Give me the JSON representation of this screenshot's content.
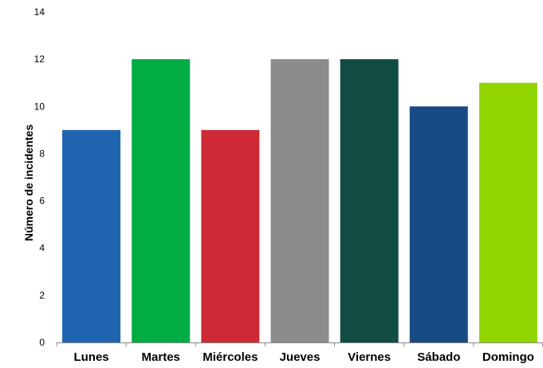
{
  "chart_data": {
    "type": "bar",
    "title": "",
    "xlabel": "",
    "ylabel": "Número de incidentes",
    "categories": [
      "Lunes",
      "Martes",
      "Miércoles",
      "Jueves",
      "Viernes",
      "Sábado",
      "Domingo"
    ],
    "values": [
      9,
      12,
      9,
      12,
      12,
      10,
      11
    ],
    "colors": [
      "#1f64ae",
      "#00ad44",
      "#cd2a35",
      "#8a8d8c",
      "#114d42",
      "#184b84",
      "#92d400"
    ],
    "ylim": [
      0,
      14
    ],
    "yticks": [
      "0",
      "2",
      "4",
      "6",
      "8",
      "10",
      "12",
      "14"
    ],
    "grid": false,
    "legend": "none"
  }
}
